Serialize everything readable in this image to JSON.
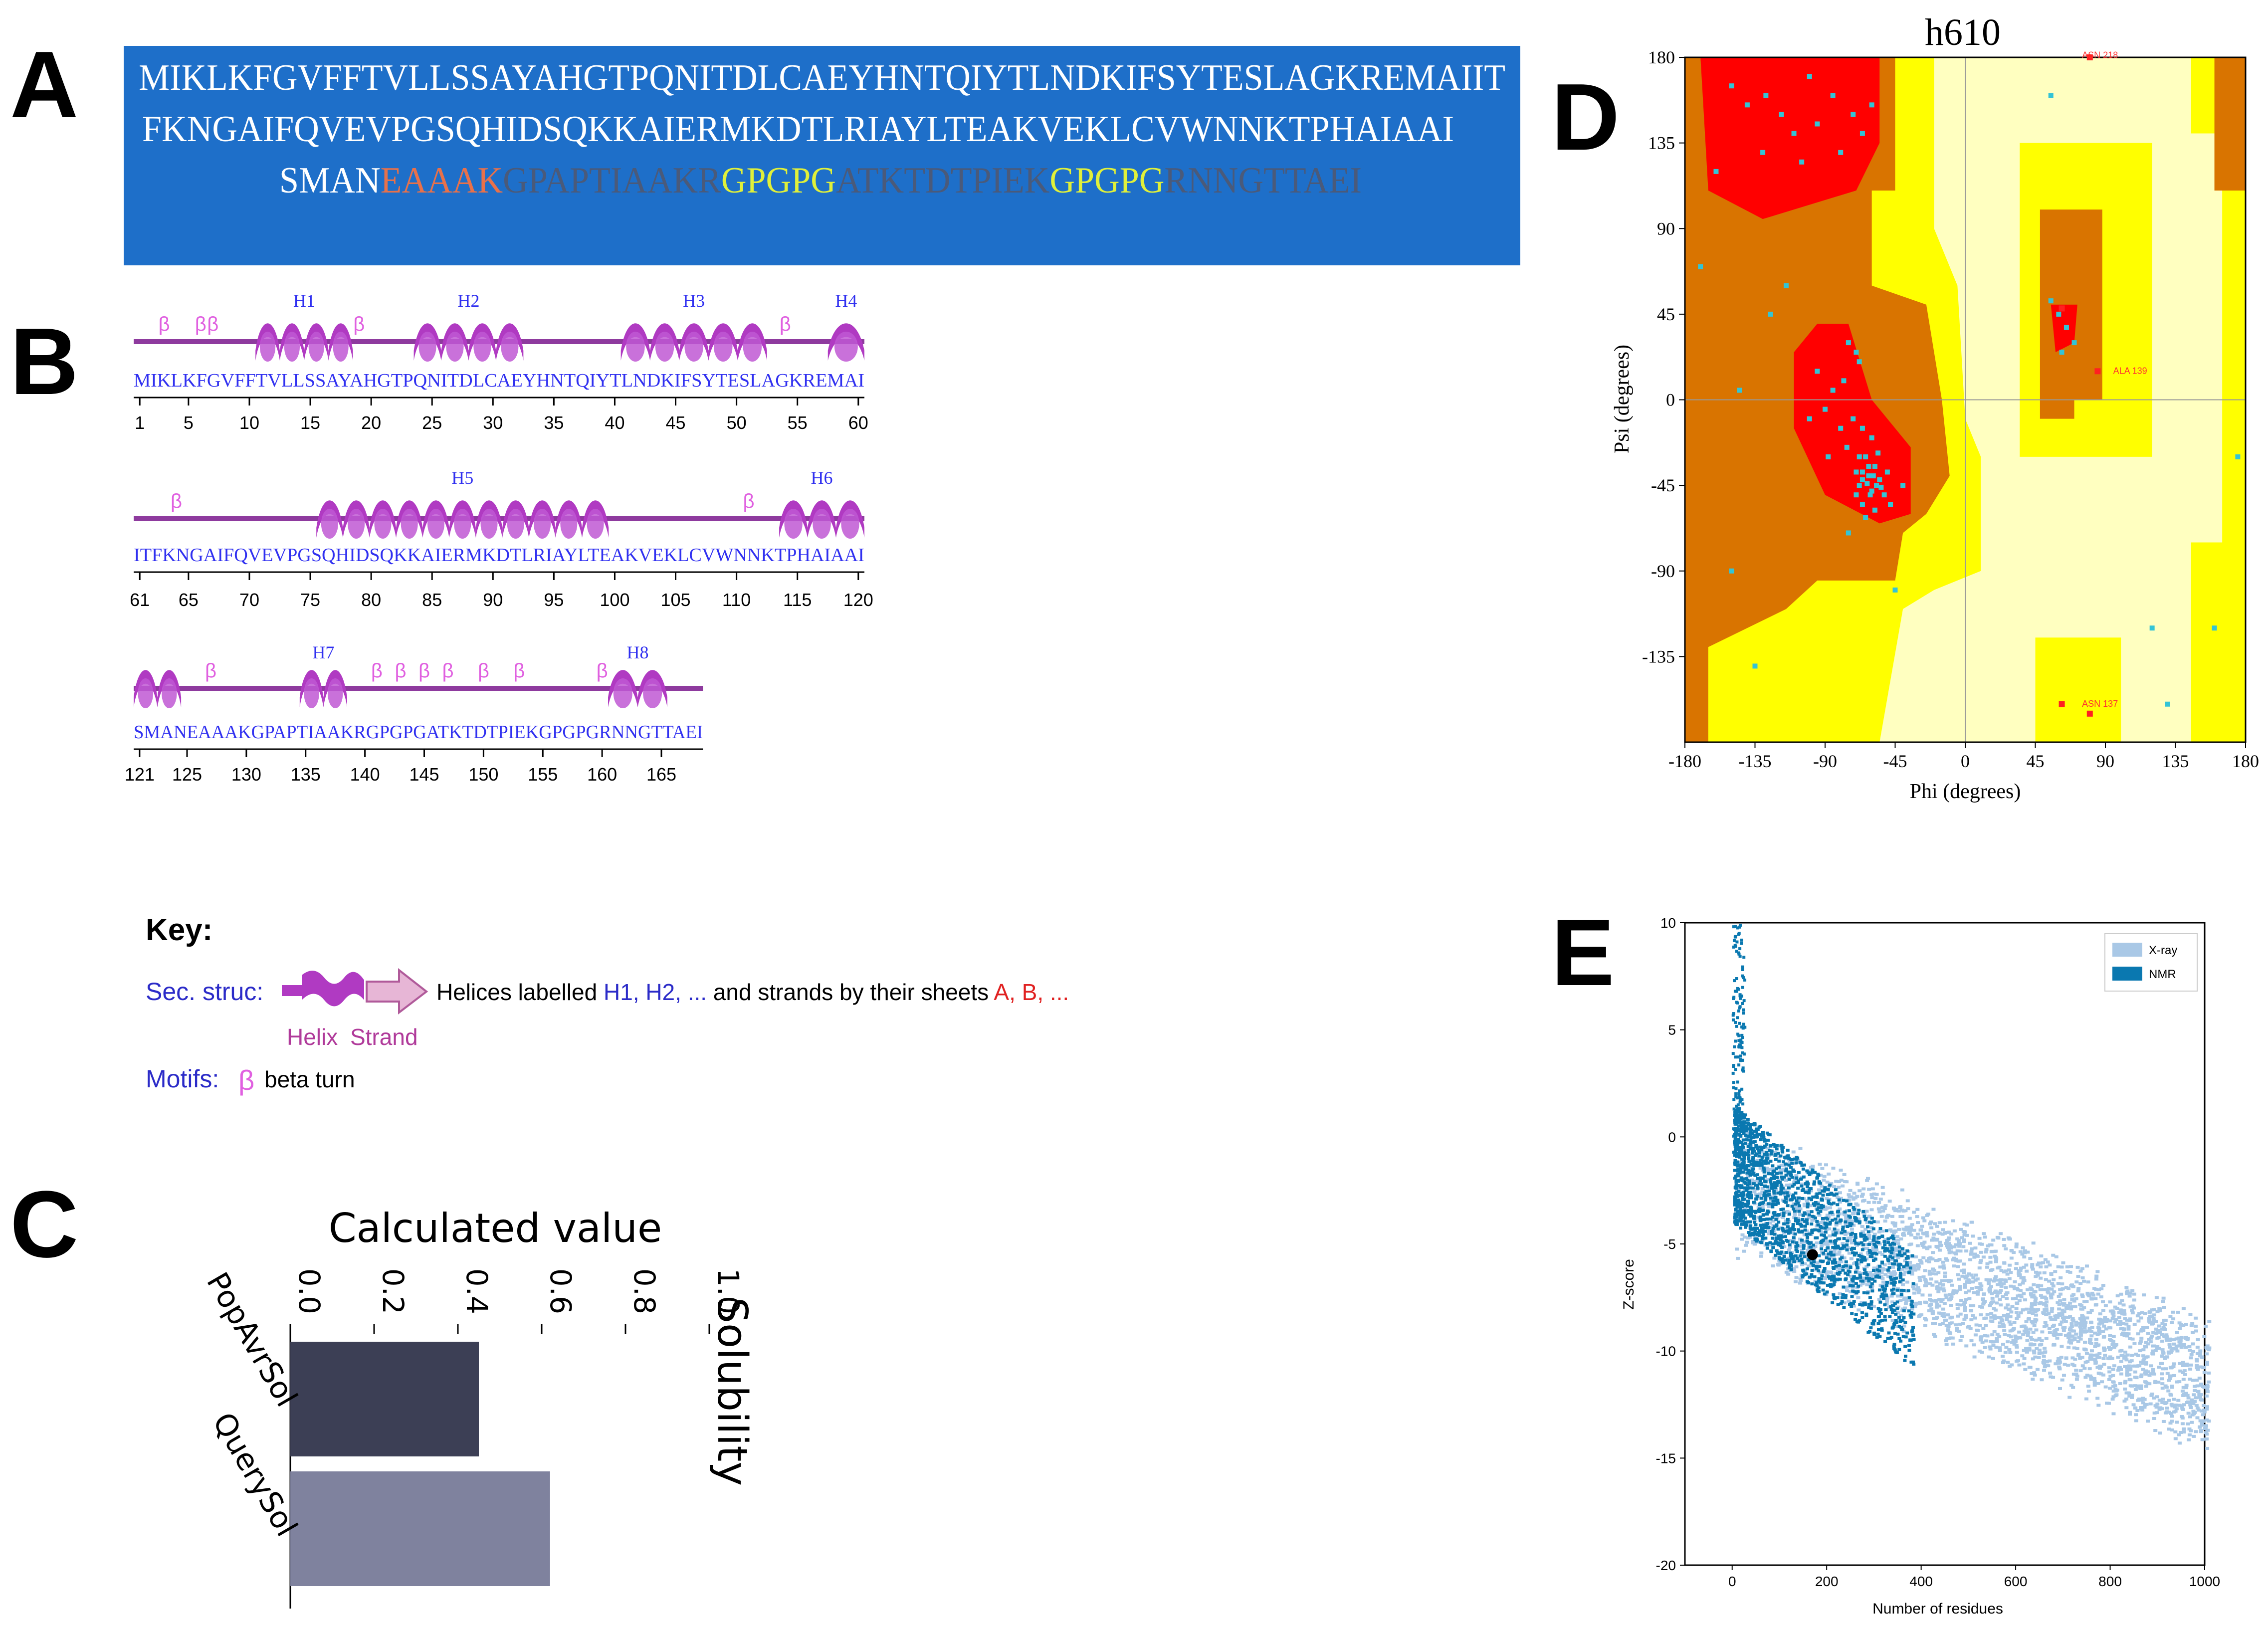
{
  "panels": {
    "a": "A",
    "b": "B",
    "c": "C",
    "d": "D",
    "e": "E"
  },
  "colors": {
    "seq_bg": "#1e6fc9",
    "seq_text": "#ffffff",
    "linker_eaaak": "#e8714a",
    "linker_gpgpg": "#e0f03a",
    "epitope_dark": "#4a5a7a",
    "helix": "#b03ac2",
    "residue_text": "#3030f0",
    "rama_core": "#ff0000",
    "rama_allowed": "#d97400",
    "rama_generous": "#ffff00",
    "rama_outside": "#ffffc0",
    "bar1": "#3c3f55",
    "bar2": "#7f829e",
    "xray": "#a9c8e6",
    "nmr": "#0a78b0"
  },
  "sequence": {
    "line1": "MIKLKFGVFFTVLLSSAYAHGTPQNITDLCAEYHNTQIYTLNDKIFSYTESLAGKREMAIIT",
    "line2": "FKNGAIFQVEVPGSQHIDSQKKAIERMKDTLRIAYLTEAKVEKLCVWNNKTPHAIAAI",
    "line3_parts": [
      {
        "text": "SMAN",
        "color": "#ffffff"
      },
      {
        "text": "EAAAK",
        "color": "#e8714a"
      },
      {
        "text": "GPAPTIAAKR",
        "color": "#4a5a7a"
      },
      {
        "text": "GPGPG",
        "color": "#e0f03a"
      },
      {
        "text": "ATKTDTPIEK",
        "color": "#4a5a7a"
      },
      {
        "text": "GPGPG",
        "color": "#e0f03a"
      },
      {
        "text": "RNNGTTAEI",
        "color": "#4a5a7a"
      }
    ]
  },
  "secondary_structure": {
    "rows": [
      {
        "residues": "MIKLKFGVFFTVLLSSAYAHGTPQNITDLCAEYHNTQIYTLNDKIFSYTESLAGKREMAI",
        "start": 1,
        "end": 60,
        "ticks": [
          "1",
          "5",
          "10",
          "15",
          "20",
          "25",
          "30",
          "35",
          "40",
          "45",
          "50",
          "55",
          "60"
        ],
        "helices": [
          {
            "label": "H1",
            "from": 11,
            "to": 18
          },
          {
            "label": "H2",
            "from": 24,
            "to": 32
          },
          {
            "label": "H3",
            "from": 41,
            "to": 52
          },
          {
            "label": "H4",
            "from": 58,
            "to": 60
          }
        ],
        "turns": [
          3,
          6,
          7,
          19,
          54
        ]
      },
      {
        "residues": "ITFKNGAIFQVEVPGSQHIDSQKKAIERMKDTLRIAYLTEAKVEKLCVWNNKTPHAIAAI",
        "start": 61,
        "end": 120,
        "ticks": [
          "61",
          "65",
          "70",
          "75",
          "80",
          "85",
          "90",
          "95",
          "100",
          "105",
          "110",
          "115",
          "120"
        ],
        "helices": [
          {
            "label": "H5",
            "from": 76,
            "to": 99
          },
          {
            "label": "H6",
            "from": 114,
            "to": 120
          }
        ],
        "turns": [
          64,
          111
        ]
      },
      {
        "residues": "SMANEAAAKGPAPTIAAKRGPGPGATKTDTPIEKGPGPGRNNGTTAEI",
        "start": 121,
        "end": 168,
        "ticks": [
          "121",
          "125",
          "130",
          "135",
          "140",
          "145",
          "150",
          "155",
          "160",
          "165"
        ],
        "helices": [
          {
            "label": "",
            "from": 121,
            "to": 124
          },
          {
            "label": "H7",
            "from": 135,
            "to": 138
          },
          {
            "label": "H8",
            "from": 161,
            "to": 165
          }
        ],
        "turns": [
          127,
          141,
          143,
          145,
          147,
          150,
          153,
          160
        ]
      }
    ],
    "key": {
      "title": "Key:",
      "sec_struc_label": "Sec. struc:",
      "helix_label": "Helix",
      "strand_label": "Strand",
      "desc_prefix": "Helices labelled ",
      "desc_h": "H1, H2, ...",
      "desc_mid": " and strands by their sheets ",
      "desc_ab": "A, B, ...",
      "motifs_label": "Motifs:",
      "beta_symbol": "β",
      "beta_turn": "beta turn"
    }
  },
  "chart_data": [
    {
      "type": "bar",
      "panel": "C",
      "title": "Calculated value",
      "ylabel": "Solubility",
      "categories": [
        "PopAvrSol",
        "QuerySol"
      ],
      "values": [
        0.45,
        0.62
      ],
      "xlim": [
        0.0,
        1.0
      ],
      "ticks": [
        "0.0",
        "0.2",
        "0.4",
        "0.6",
        "0.8",
        "1.0"
      ]
    },
    {
      "type": "scatter",
      "panel": "D",
      "title": "h610",
      "xlabel": "Phi (degrees)",
      "ylabel": "Psi (degrees)",
      "xlim": [
        -180,
        180
      ],
      "ylim": [
        -180,
        180
      ],
      "ticks": [
        "-180",
        "-135",
        "-90",
        "-45",
        "0",
        "45",
        "90",
        "135",
        "180"
      ],
      "flagged_labels": [
        "ASN 218",
        "ALA 139",
        "ASN 137"
      ],
      "points": [
        [
          -150,
          165
        ],
        [
          -140,
          155
        ],
        [
          -128,
          160
        ],
        [
          -118,
          150
        ],
        [
          -110,
          140
        ],
        [
          -100,
          170
        ],
        [
          -95,
          145
        ],
        [
          -85,
          160
        ],
        [
          -80,
          130
        ],
        [
          -72,
          150
        ],
        [
          -66,
          140
        ],
        [
          -60,
          155
        ],
        [
          -130,
          130
        ],
        [
          -105,
          125
        ],
        [
          -125,
          45
        ],
        [
          -115,
          60
        ],
        [
          -160,
          120
        ],
        [
          -75,
          30
        ],
        [
          -70,
          25
        ],
        [
          -68,
          20
        ],
        [
          -78,
          10
        ],
        [
          -85,
          5
        ],
        [
          -90,
          -5
        ],
        [
          -72,
          -10
        ],
        [
          -66,
          -15
        ],
        [
          -60,
          -20
        ],
        [
          -64,
          -30
        ],
        [
          -58,
          -35
        ],
        [
          -62,
          -40
        ],
        [
          -55,
          -42
        ],
        [
          -68,
          -45
        ],
        [
          -60,
          -48
        ],
        [
          -52,
          -50
        ],
        [
          -66,
          -55
        ],
        [
          -58,
          -58
        ],
        [
          -70,
          -38
        ],
        [
          -76,
          -25
        ],
        [
          -80,
          -15
        ],
        [
          -95,
          15
        ],
        [
          -100,
          -10
        ],
        [
          -88,
          -30
        ],
        [
          -50,
          -38
        ],
        [
          -56,
          -28
        ],
        [
          -64,
          -62
        ],
        [
          -48,
          -55
        ],
        [
          -75,
          -70
        ],
        [
          -40,
          -45
        ],
        [
          60,
          45
        ],
        [
          65,
          38
        ],
        [
          55,
          52
        ],
        [
          70,
          30
        ],
        [
          62,
          25
        ],
        [
          -68,
          -30
        ],
        [
          -62,
          -35
        ],
        [
          -57,
          -45
        ],
        [
          -63,
          -44
        ],
        [
          -59,
          -40
        ],
        [
          -66,
          -38
        ],
        [
          -61,
          -50
        ],
        [
          -54,
          -46
        ],
        [
          -66,
          -42
        ],
        [
          -70,
          -50
        ],
        [
          -135,
          -140
        ],
        [
          -150,
          -90
        ],
        [
          -145,
          5
        ],
        [
          175,
          -30
        ],
        [
          160,
          -120
        ],
        [
          130,
          -160
        ],
        [
          120,
          -120
        ],
        [
          -170,
          70
        ],
        [
          -45,
          -100
        ],
        [
          55,
          160
        ]
      ],
      "outliers": [
        [
          80,
          180
        ],
        [
          62,
          48
        ],
        [
          85,
          15
        ],
        [
          62,
          -160
        ],
        [
          80,
          -165
        ]
      ]
    },
    {
      "type": "scatter",
      "panel": "E",
      "xlabel": "Number of residues",
      "ylabel": "Z-score",
      "xlim": [
        -100,
        1000
      ],
      "ylim": [
        -20,
        10
      ],
      "xticks": [
        "0",
        "200",
        "400",
        "600",
        "800",
        "1000"
      ],
      "yticks": [
        "10",
        "5",
        "0",
        "-5",
        "-10",
        "-15",
        "-20"
      ],
      "legend": [
        {
          "name": "X-ray"
        },
        {
          "name": "NMR"
        }
      ],
      "legend_position": "top-right",
      "model_point": [
        170,
        -5.5
      ]
    }
  ]
}
